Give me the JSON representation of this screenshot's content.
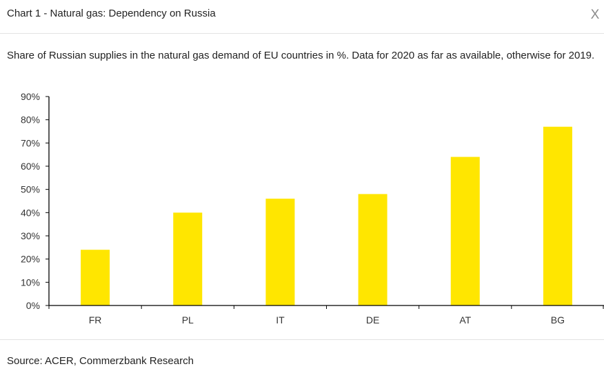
{
  "header": {
    "title": "Chart 1 - Natural gas: Dependency on Russia",
    "close_label": "X"
  },
  "subtitle": "Share of Russian supplies in the natural gas demand of EU countries in %. Data for 2020 as far as available, otherwise for 2019.",
  "footer": {
    "source": "Source: ACER, Commerzbank Research"
  },
  "colors": {
    "bar": "#FFE600",
    "axis": "#000000"
  },
  "chart_data": {
    "type": "bar",
    "title": "Chart 1 - Natural gas: Dependency on Russia",
    "categories": [
      "FR",
      "PL",
      "IT",
      "DE",
      "AT",
      "BG"
    ],
    "values": [
      24,
      40,
      46,
      48,
      64,
      77
    ],
    "ylim": [
      0,
      90
    ],
    "yticks": [
      0,
      10,
      20,
      30,
      40,
      50,
      60,
      70,
      80,
      90
    ],
    "ytick_labels": [
      "0%",
      "10%",
      "20%",
      "30%",
      "40%",
      "50%",
      "60%",
      "70%",
      "80%",
      "90%"
    ],
    "xlabel": "",
    "ylabel": "",
    "grid": false,
    "legend": "none"
  }
}
